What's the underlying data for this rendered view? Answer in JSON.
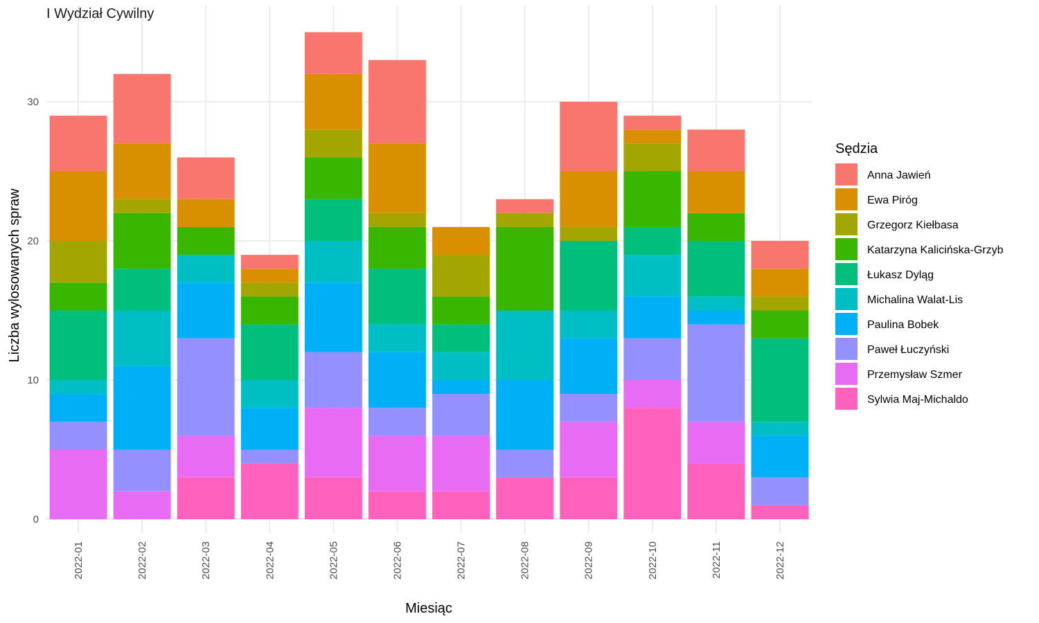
{
  "chart_data": {
    "type": "bar",
    "stacked": true,
    "facet_title": "I Wydział Cywilny",
    "xlabel": "Miesiąc",
    "ylabel": "Liczba wylosowanych spraw",
    "ylim": [
      0,
      35
    ],
    "y_ticks": [
      0,
      10,
      20,
      30
    ],
    "grid": true,
    "legend_title": "Sędzia",
    "legend_position": "right",
    "categories": [
      "2022-01",
      "2022-02",
      "2022-03",
      "2022-04",
      "2022-05",
      "2022-06",
      "2022-07",
      "2022-08",
      "2022-09",
      "2022-10",
      "2022-11",
      "2022-12"
    ],
    "series": [
      {
        "name": "Anna Jawień",
        "color": "#F8766D",
        "values": [
          4,
          5,
          3,
          1,
          3,
          6,
          0,
          1,
          5,
          1,
          3,
          2
        ]
      },
      {
        "name": "Ewa Piróg",
        "color": "#D89000",
        "values": [
          5,
          4,
          2,
          1,
          4,
          5,
          2,
          0,
          4,
          1,
          3,
          2
        ]
      },
      {
        "name": "Grzegorz Kiełbasa",
        "color": "#A3A500",
        "values": [
          3,
          1,
          0,
          1,
          2,
          1,
          3,
          1,
          1,
          2,
          0,
          1
        ]
      },
      {
        "name": "Katarzyna Kalicińska-Grzyb",
        "color": "#39B600",
        "values": [
          2,
          4,
          2,
          2,
          3,
          3,
          2,
          6,
          0,
          4,
          2,
          2
        ]
      },
      {
        "name": "Łukasz Dyląg",
        "color": "#00BF7D",
        "values": [
          5,
          3,
          0,
          4,
          3,
          4,
          2,
          0,
          5,
          2,
          4,
          6
        ]
      },
      {
        "name": "Michalina Walat-Lis",
        "color": "#00BFC4",
        "values": [
          1,
          4,
          2,
          2,
          3,
          2,
          2,
          5,
          2,
          3,
          1,
          1
        ]
      },
      {
        "name": "Paulina Bobek",
        "color": "#00B0F6",
        "values": [
          2,
          6,
          4,
          3,
          5,
          4,
          1,
          5,
          4,
          3,
          1,
          3
        ]
      },
      {
        "name": "Paweł Łuczyński",
        "color": "#9590FF",
        "values": [
          2,
          3,
          7,
          1,
          4,
          2,
          3,
          2,
          2,
          3,
          7,
          2
        ]
      },
      {
        "name": "Przemysław Szmer",
        "color": "#E76BF3",
        "values": [
          5,
          2,
          3,
          0,
          5,
          4,
          4,
          0,
          4,
          2,
          3,
          0
        ]
      },
      {
        "name": "Sylwia Maj-Michaldo",
        "color": "#FF62BC",
        "values": [
          0,
          0,
          3,
          4,
          3,
          2,
          2,
          3,
          3,
          8,
          4,
          1
        ]
      }
    ]
  }
}
